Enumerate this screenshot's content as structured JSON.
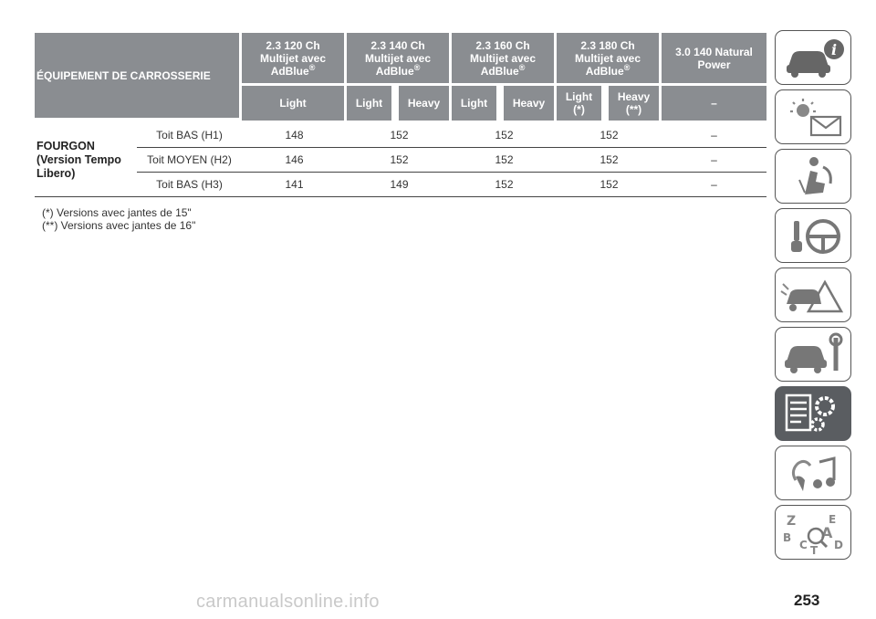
{
  "table": {
    "header_main": "ÉQUIPEMENT DE CARROSSERIE",
    "engines": [
      {
        "line1": "2.3 120 Ch",
        "line2": "Multijet avec",
        "line3": "AdBlue",
        "mark": "®"
      },
      {
        "line1": "2.3 140 Ch",
        "line2": "Multijet avec",
        "line3": "AdBlue",
        "mark": "®"
      },
      {
        "line1": "2.3 160 Ch",
        "line2": "Multijet avec",
        "line3": "AdBlue",
        "mark": "®"
      },
      {
        "line1": "2.3 180 Ch",
        "line2": "Multijet avec",
        "line3": "AdBlue",
        "mark": "®"
      },
      {
        "line1": "3.0 140 Natural",
        "line2": "Power"
      }
    ],
    "variants": [
      "Light",
      "Light",
      "Heavy",
      "Light",
      "Heavy",
      "Light (*)",
      "Heavy (**)",
      "–"
    ],
    "group_label": "FOURGON (Version Tempo Libero)",
    "rows": [
      {
        "label": "Toit BAS (H1)",
        "values": [
          "148",
          "152",
          "152",
          "152",
          "–"
        ]
      },
      {
        "label": "Toit MOYEN (H2)",
        "values": [
          "146",
          "152",
          "152",
          "152",
          "–"
        ]
      },
      {
        "label": "Toit BAS (H3)",
        "values": [
          "141",
          "149",
          "152",
          "152",
          "–"
        ]
      }
    ]
  },
  "notes": [
    "(*) Versions avec jantes de 15\"",
    "(**) Versions avec jantes de 16\""
  ],
  "sidebar": {
    "icons": [
      "car-info-icon",
      "warning-light-mail-icon",
      "airbag-seat-icon",
      "key-steering-wheel-icon",
      "car-accident-warning-icon",
      "car-wrench-icon",
      "list-gears-icon",
      "music-nav-icon",
      "alphabet-index-icon"
    ],
    "active_index": 6
  },
  "page_number": "253",
  "watermark": "carmanualsonline.info"
}
